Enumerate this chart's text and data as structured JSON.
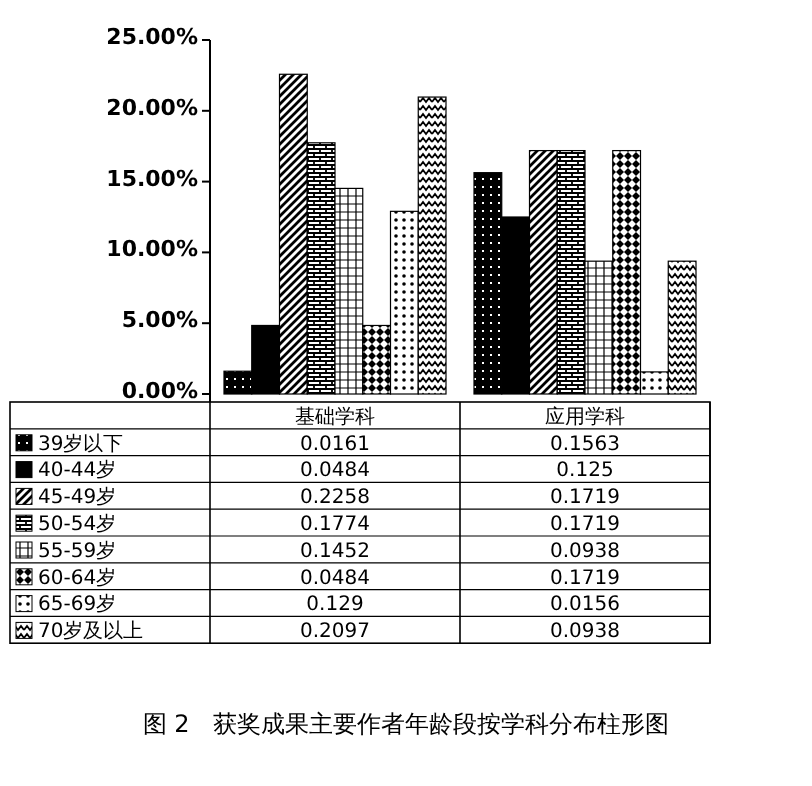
{
  "chart_data": {
    "type": "bar",
    "title": "图 2　获奖成果主要作者年龄段按学科分布柱形图",
    "categories": [
      "基础学科",
      "应用学科"
    ],
    "series": [
      {
        "name": "39岁以下",
        "color": "#000000",
        "values": [
          0.0161,
          0.1563
        ]
      },
      {
        "name": "40-44岁",
        "color": "#000000",
        "values": [
          0.0484,
          0.125
        ]
      },
      {
        "name": "45-49岁",
        "color": "#000000",
        "values": [
          0.2258,
          0.1719
        ]
      },
      {
        "name": "50-54岁",
        "color": "#000000",
        "values": [
          0.1774,
          0.1719
        ]
      },
      {
        "name": "55-59岁",
        "color": "#000000",
        "values": [
          0.1452,
          0.0938
        ]
      },
      {
        "name": "60-64岁",
        "color": "#000000",
        "values": [
          0.0484,
          0.1719
        ]
      },
      {
        "name": "65-69岁",
        "color": "#000000",
        "values": [
          0.129,
          0.0156
        ]
      },
      {
        "name": "70岁及以上",
        "color": "#000000",
        "values": [
          0.2097,
          0.0938
        ]
      }
    ],
    "data_labels": true,
    "ylim": [
      0,
      0.25
    ],
    "yticks": [
      {
        "value": 0,
        "label": "0.00%"
      },
      {
        "value": 0.05,
        "label": "5.00%"
      },
      {
        "value": 0.1,
        "label": "10.00%"
      },
      {
        "value": 0.15,
        "label": "15.00%"
      },
      {
        "value": 0.2,
        "label": "20.00%"
      },
      {
        "value": 0.25,
        "label": "25.00%"
      }
    ],
    "legend": "bottom left"
  }
}
